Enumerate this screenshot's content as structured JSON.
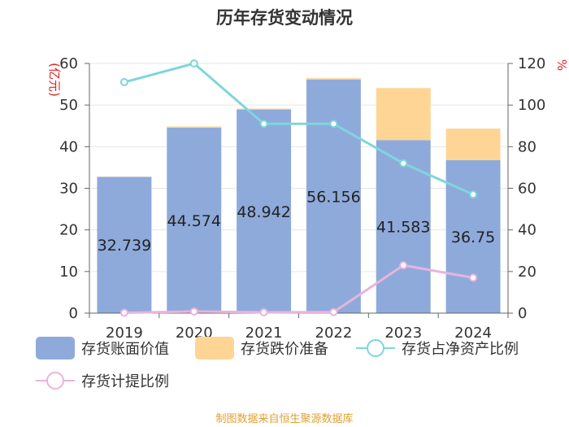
{
  "title": "历年存货变动情况",
  "source": "制图数据来自恒生聚源数据库",
  "colors": {
    "book_value": "#8eaadb",
    "provision": "#ffd596",
    "net_ratio": "#7fd5dc",
    "provision_ratio": "#e8b4dc",
    "left_unit": "#e02020",
    "right_unit": "#e02020"
  },
  "legend": {
    "book_value": "存货账面价值",
    "provision": "存货跌价准备",
    "net_ratio": "存货占净资产比例",
    "provision_ratio": "存货计提比例"
  },
  "chart_data": {
    "type": "bar",
    "title": "历年存货变动情况",
    "categories": [
      "2019",
      "2020",
      "2021",
      "2022",
      "2023",
      "2024"
    ],
    "y_left": {
      "label": "(亿元)",
      "ylim": [
        0,
        60
      ],
      "ticks": [
        0,
        10,
        20,
        30,
        40,
        50,
        60
      ]
    },
    "y_right": {
      "label": "%",
      "ylim": [
        0,
        120
      ],
      "ticks": [
        0,
        20,
        40,
        60,
        80,
        100,
        120
      ]
    },
    "series": [
      {
        "name": "存货账面价值",
        "kind": "bar",
        "stack": "a",
        "axis": "left",
        "values": [
          32.739,
          44.574,
          48.942,
          56.156,
          41.583,
          36.75
        ],
        "labels": [
          "32.739",
          "44.574",
          "48.942",
          "56.156",
          "41.583",
          "36.75"
        ]
      },
      {
        "name": "存货跌价准备",
        "kind": "bar",
        "stack": "a",
        "axis": "left",
        "values": [
          0.05,
          0.3,
          0.2,
          0.3,
          12.5,
          7.6
        ]
      },
      {
        "name": "存货占净资产比例",
        "kind": "line",
        "axis": "right",
        "values": [
          111,
          120,
          91,
          91,
          72,
          57
        ]
      },
      {
        "name": "存货计提比例",
        "kind": "line",
        "axis": "right",
        "values": [
          0.2,
          0.8,
          0.4,
          0.5,
          23,
          17
        ]
      }
    ],
    "grid": true,
    "legend_position": "bottom"
  }
}
